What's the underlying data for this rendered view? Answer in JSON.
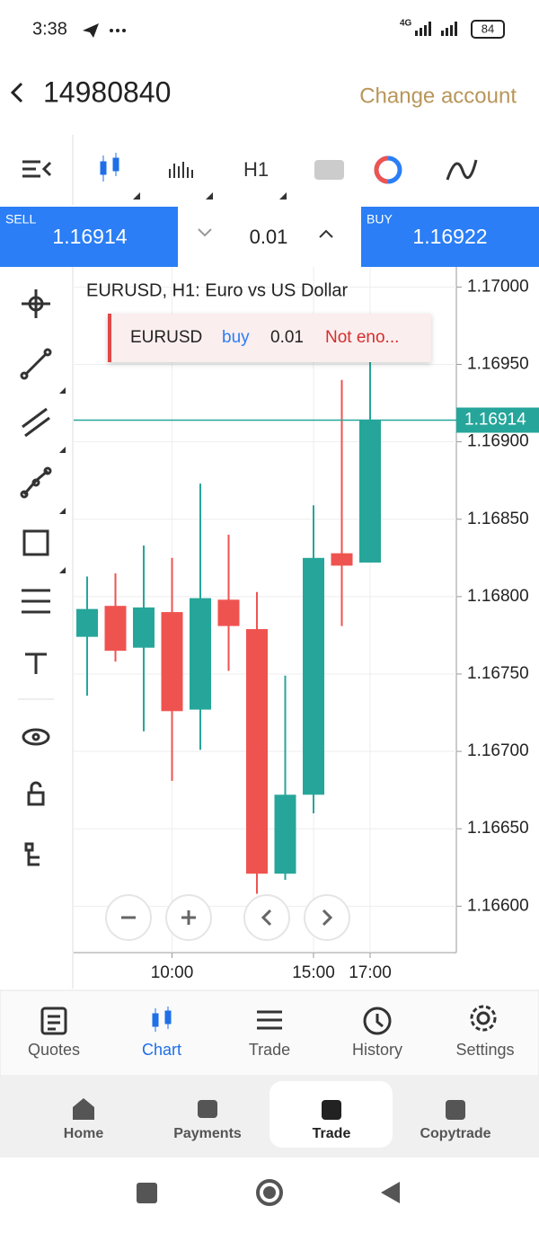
{
  "status_bar": {
    "time": "3:38",
    "network": "4G",
    "battery": "84"
  },
  "header": {
    "account": "14980840",
    "change_account": "Change account"
  },
  "toolbar": {
    "timeframe": "H1"
  },
  "trade_panel": {
    "sell_label": "SELL",
    "sell_price": "1.16914",
    "volume": "0.01",
    "buy_label": "BUY",
    "buy_price": "1.16922"
  },
  "chart_data": {
    "type": "candlestick",
    "title": "EURUSD, H1: Euro vs US Dollar",
    "categories": [
      null,
      null,
      null,
      "10:00",
      null,
      null,
      null,
      null,
      "15:00",
      null,
      "17:00"
    ],
    "open": [
      1.16774,
      1.16794,
      1.16767,
      1.1679,
      1.16727,
      1.16798,
      1.16779,
      1.16621,
      1.16672,
      1.16828,
      1.16822
    ],
    "high": [
      1.16813,
      1.16815,
      1.16833,
      1.16825,
      1.16873,
      1.1684,
      1.16803,
      1.16749,
      1.16859,
      1.1694,
      1.16954
    ],
    "low": [
      1.16736,
      1.16758,
      1.16713,
      1.16681,
      1.16701,
      1.16752,
      1.16608,
      1.16617,
      1.1666,
      1.16781,
      1.16822
    ],
    "close": [
      1.16792,
      1.16765,
      1.16793,
      1.16726,
      1.16799,
      1.16781,
      1.16621,
      1.16672,
      1.16825,
      1.1682,
      1.16914
    ],
    "up_color": "#26a69a",
    "down_color": "#ef5350",
    "ylim": [
      1.1657,
      1.17013
    ],
    "yticks": [
      {
        "value": 1.17,
        "label": "1.17000"
      },
      {
        "value": 1.1695,
        "label": "1.16950"
      },
      {
        "value": 1.169,
        "label": "1.16900"
      },
      {
        "value": 1.1685,
        "label": "1.16850"
      },
      {
        "value": 1.168,
        "label": "1.16800"
      },
      {
        "value": 1.1675,
        "label": "1.16750"
      },
      {
        "value": 1.167,
        "label": "1.16700"
      },
      {
        "value": 1.1665,
        "label": "1.16650"
      },
      {
        "value": 1.166,
        "label": "1.16600"
      }
    ],
    "grid": true,
    "price_line": 1.16914
  },
  "notification": {
    "symbol": "EURUSD",
    "side": "buy",
    "volume": "0.01",
    "message": "Not eno..."
  },
  "tabs": [
    "Quotes",
    "Chart",
    "Trade",
    "History",
    "Settings"
  ],
  "nav": [
    "Home",
    "Payments",
    "Trade",
    "Copytrade"
  ]
}
